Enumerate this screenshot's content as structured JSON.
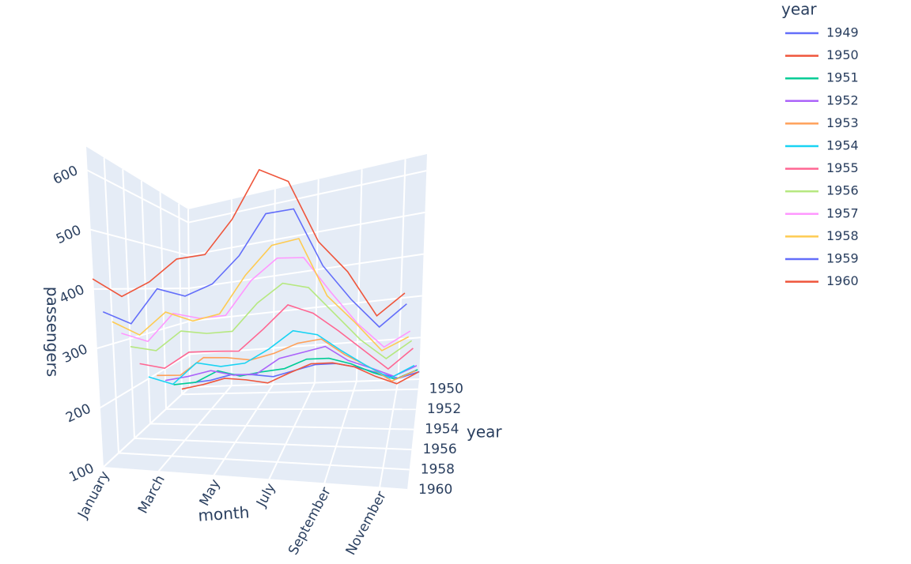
{
  "chart_data": {
    "type": "line3d",
    "x_title": "month",
    "y_title": "year",
    "z_title": "passengers",
    "legend_title": "year",
    "categories": [
      "January",
      null,
      "March",
      null,
      "May",
      null,
      "July",
      null,
      "September",
      null,
      "November",
      null
    ],
    "ylim": [
      1949,
      1960
    ],
    "yticks": [
      1950,
      1952,
      1954,
      1956,
      1958,
      1960
    ],
    "zlim": [
      100,
      640
    ],
    "zticks": [
      100,
      200,
      300,
      400,
      500,
      600
    ],
    "grid": true,
    "legend": "right",
    "series": [
      {
        "name": "1949",
        "year": 1949,
        "color": "#636efa",
        "values": [
          112,
          118,
          132,
          129,
          121,
          135,
          148,
          148,
          136,
          119,
          104,
          118
        ]
      },
      {
        "name": "1950",
        "year": 1950,
        "color": "#EF553B",
        "values": [
          115,
          126,
          141,
          135,
          125,
          149,
          170,
          170,
          158,
          133,
          114,
          140
        ]
      },
      {
        "name": "1951",
        "year": 1951,
        "color": "#00cc96",
        "values": [
          145,
          150,
          178,
          163,
          172,
          178,
          199,
          199,
          184,
          162,
          146,
          166
        ]
      },
      {
        "name": "1952",
        "year": 1952,
        "color": "#ab63fa",
        "values": [
          171,
          180,
          193,
          181,
          183,
          218,
          230,
          242,
          209,
          191,
          172,
          194
        ]
      },
      {
        "name": "1953",
        "year": 1953,
        "color": "#FFA15A",
        "values": [
          196,
          196,
          236,
          235,
          229,
          243,
          264,
          272,
          237,
          211,
          180,
          201
        ]
      },
      {
        "name": "1954",
        "year": 1954,
        "color": "#19d3f3",
        "values": [
          204,
          188,
          235,
          227,
          234,
          264,
          302,
          293,
          259,
          229,
          203,
          229
        ]
      },
      {
        "name": "1955",
        "year": 1955,
        "color": "#FF6692",
        "values": [
          242,
          233,
          267,
          269,
          270,
          315,
          364,
          347,
          312,
          274,
          237,
          278
        ]
      },
      {
        "name": "1956",
        "year": 1956,
        "color": "#B6E880",
        "values": [
          284,
          277,
          317,
          313,
          318,
          374,
          413,
          405,
          355,
          306,
          271,
          306
        ]
      },
      {
        "name": "1957",
        "year": 1957,
        "color": "#FF97FF",
        "values": [
          315,
          301,
          356,
          348,
          355,
          422,
          465,
          467,
          404,
          347,
          305,
          336
        ]
      },
      {
        "name": "1958",
        "year": 1958,
        "color": "#FECB52",
        "values": [
          340,
          318,
          362,
          348,
          363,
          435,
          491,
          505,
          404,
          359,
          310,
          337
        ]
      },
      {
        "name": "1959",
        "year": 1959,
        "color": "#636efa",
        "values": [
          360,
          342,
          406,
          396,
          420,
          472,
          548,
          559,
          463,
          407,
          362,
          405
        ]
      },
      {
        "name": "1960",
        "year": 1960,
        "color": "#EF553B",
        "values": [
          417,
          391,
          419,
          461,
          472,
          535,
          622,
          606,
          508,
          461,
          390,
          432
        ]
      }
    ]
  }
}
